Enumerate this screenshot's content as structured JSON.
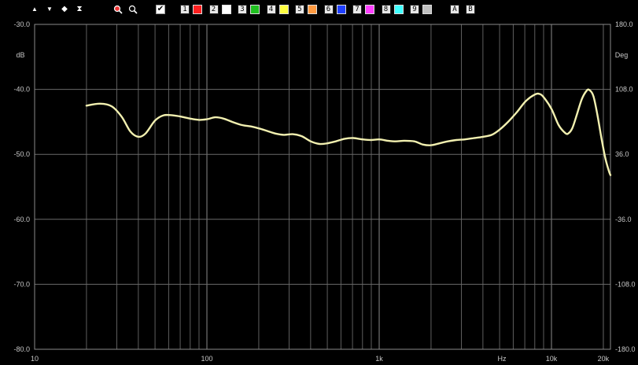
{
  "toolbar": {
    "nav_icons": [
      "arrow-up-icon",
      "arrow-down-icon",
      "expand-vertical-icon",
      "fit-vertical-icon"
    ],
    "zoom_icons": [
      "zoom-in-icon",
      "zoom-out-icon"
    ],
    "check_glyph": "✔",
    "traces": [
      {
        "label": "1",
        "color": "#ff2020"
      },
      {
        "label": "2",
        "color": "#ffffff"
      },
      {
        "label": "3",
        "color": "#20c020"
      },
      {
        "label": "4",
        "color": "#ffff40"
      },
      {
        "label": "5",
        "color": "#ff9a40"
      },
      {
        "label": "6",
        "color": "#2040ff"
      },
      {
        "label": "7",
        "color": "#ff40ff"
      },
      {
        "label": "8",
        "color": "#40ffff"
      },
      {
        "label": "9",
        "color": "#c0c0c0"
      }
    ],
    "ab_buttons": [
      "A",
      "B"
    ]
  },
  "chart_data": {
    "type": "line",
    "xscale": "log",
    "xlim": [
      10,
      22000
    ],
    "ylim": [
      -80,
      -30
    ],
    "y2lim": [
      -180,
      180
    ],
    "grid": true,
    "left_unit_label": "dB",
    "right_unit_label": "Deg",
    "hz_label": "Hz",
    "yticks": [
      {
        "v": -30,
        "label": "-30.0"
      },
      {
        "v": -40,
        "label": "-40.0"
      },
      {
        "v": -50,
        "label": "-50.0"
      },
      {
        "v": -60,
        "label": "-60.0"
      },
      {
        "v": -70,
        "label": "-70.0"
      },
      {
        "v": -80,
        "label": "-80.0"
      }
    ],
    "y2ticks": [
      {
        "v": 180,
        "label": "180.0"
      },
      {
        "v": 108,
        "label": "108.0"
      },
      {
        "v": 36,
        "label": "36.0"
      },
      {
        "v": -36,
        "label": "-36.0"
      },
      {
        "v": -108,
        "label": "-108.0"
      },
      {
        "v": -180,
        "label": "-180.0"
      }
    ],
    "xticks": [
      {
        "v": 10,
        "label": "10"
      },
      {
        "v": 100,
        "label": "100"
      },
      {
        "v": 1000,
        "label": "1k"
      },
      {
        "v": 10000,
        "label": "10k"
      },
      {
        "v": 20000,
        "label": "20k"
      }
    ],
    "series": [
      {
        "color": "#f2f0b0",
        "points": [
          [
            20,
            -42.5
          ],
          [
            24,
            -42.2
          ],
          [
            28,
            -42.6
          ],
          [
            32,
            -44.2
          ],
          [
            36,
            -46.5
          ],
          [
            40,
            -47.3
          ],
          [
            44,
            -46.8
          ],
          [
            50,
            -44.8
          ],
          [
            56,
            -44.0
          ],
          [
            63,
            -44.0
          ],
          [
            71,
            -44.2
          ],
          [
            80,
            -44.5
          ],
          [
            90,
            -44.7
          ],
          [
            100,
            -44.6
          ],
          [
            112,
            -44.3
          ],
          [
            125,
            -44.5
          ],
          [
            140,
            -45.0
          ],
          [
            160,
            -45.5
          ],
          [
            180,
            -45.7
          ],
          [
            200,
            -46.0
          ],
          [
            224,
            -46.4
          ],
          [
            250,
            -46.8
          ],
          [
            280,
            -47.0
          ],
          [
            315,
            -46.9
          ],
          [
            355,
            -47.2
          ],
          [
            400,
            -48.0
          ],
          [
            450,
            -48.4
          ],
          [
            500,
            -48.3
          ],
          [
            560,
            -48.0
          ],
          [
            630,
            -47.6
          ],
          [
            710,
            -47.5
          ],
          [
            800,
            -47.7
          ],
          [
            900,
            -47.8
          ],
          [
            1000,
            -47.7
          ],
          [
            1120,
            -47.9
          ],
          [
            1250,
            -48.0
          ],
          [
            1400,
            -47.9
          ],
          [
            1600,
            -48.0
          ],
          [
            1800,
            -48.5
          ],
          [
            2000,
            -48.6
          ],
          [
            2240,
            -48.3
          ],
          [
            2500,
            -48.0
          ],
          [
            2800,
            -47.8
          ],
          [
            3150,
            -47.7
          ],
          [
            3550,
            -47.5
          ],
          [
            4000,
            -47.3
          ],
          [
            4500,
            -47.0
          ],
          [
            5000,
            -46.2
          ],
          [
            5600,
            -45.0
          ],
          [
            6300,
            -43.5
          ],
          [
            7100,
            -41.8
          ],
          [
            8000,
            -40.8
          ],
          [
            8500,
            -40.7
          ],
          [
            9000,
            -41.2
          ],
          [
            10000,
            -43.0
          ],
          [
            11000,
            -45.5
          ],
          [
            12000,
            -46.7
          ],
          [
            12500,
            -46.8
          ],
          [
            13200,
            -46.0
          ],
          [
            14000,
            -44.0
          ],
          [
            15000,
            -41.5
          ],
          [
            16000,
            -40.2
          ],
          [
            16600,
            -40.1
          ],
          [
            17500,
            -41.0
          ],
          [
            18500,
            -44.0
          ],
          [
            19500,
            -47.5
          ],
          [
            20500,
            -50.5
          ],
          [
            21500,
            -52.5
          ],
          [
            22000,
            -53.2
          ]
        ]
      }
    ]
  }
}
